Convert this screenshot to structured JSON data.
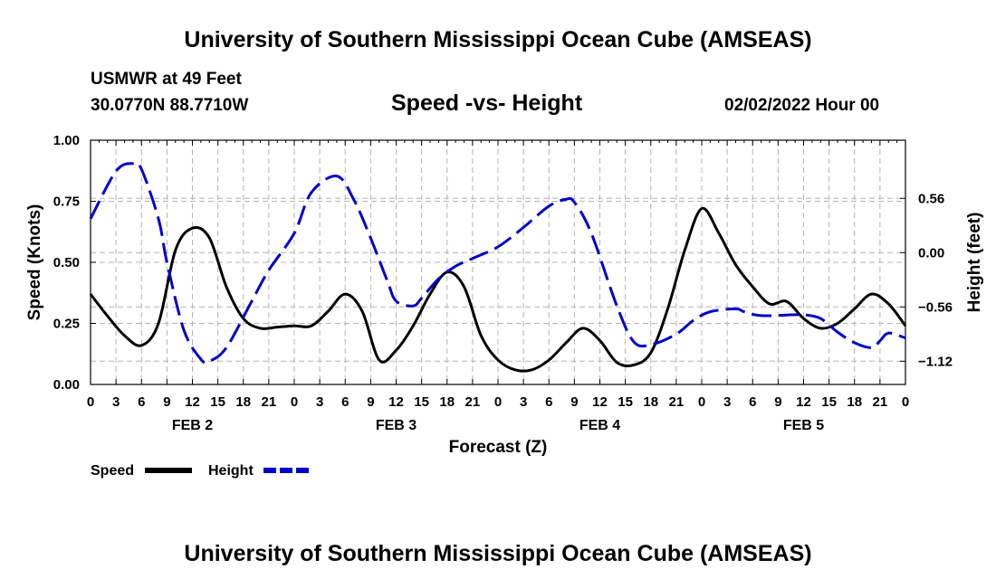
{
  "header": {
    "title": "University of Southern Mississippi Ocean Cube (AMSEAS)",
    "station": "USMWR at 49 Feet",
    "coords": "30.0770N  88.7710W",
    "chart_title": "Speed -vs- Height",
    "datetime": "02/02/2022 Hour 00"
  },
  "footer": {
    "title": "University of Southern Mississippi Ocean Cube (AMSEAS)"
  },
  "legend": {
    "speed_label": "Speed",
    "height_label": "Height"
  },
  "colors": {
    "speed": "#000000",
    "height": "#0000cc",
    "grid": "#b4b4b4"
  },
  "chart_data": {
    "type": "line",
    "title": "Speed -vs- Height",
    "xlabel": "Forecast (Z)",
    "ylabel": "Speed (Knots)",
    "y2label": "Height (feet)",
    "xlim": [
      0,
      96
    ],
    "ylim": [
      0,
      1.0
    ],
    "y2lim": [
      -1.36,
      1.16
    ],
    "x_tick_labels": [
      "0",
      "3",
      "6",
      "9",
      "12",
      "15",
      "18",
      "21",
      "0",
      "3",
      "6",
      "9",
      "12",
      "15",
      "18",
      "21",
      "0",
      "3",
      "6",
      "9",
      "12",
      "15",
      "18",
      "21",
      "0",
      "3",
      "6",
      "9",
      "12",
      "15",
      "18",
      "21",
      "0"
    ],
    "day_labels": [
      {
        "label": "FEB 2",
        "x": 12
      },
      {
        "label": "FEB 3",
        "x": 36
      },
      {
        "label": "FEB 4",
        "x": 60
      },
      {
        "label": "FEB 5",
        "x": 84
      }
    ],
    "y_ticks": [
      "0.00",
      "0.25",
      "0.50",
      "0.75",
      "1.00"
    ],
    "y2_ticks": [
      "−1.12",
      "−0.56",
      "0.00",
      "0.56"
    ],
    "y_tick_values": [
      0,
      0.25,
      0.5,
      0.75,
      1.0
    ],
    "y2_tick_values": [
      -1.12,
      -0.56,
      0.0,
      0.56
    ],
    "grid": true,
    "series": [
      {
        "name": "Speed",
        "axis": "left",
        "style": "solid",
        "x": [
          0,
          2,
          4,
          6,
          8,
          10,
          12,
          14,
          16,
          18,
          20,
          22,
          24,
          26,
          28,
          30,
          32,
          34,
          36,
          38,
          40,
          42,
          44,
          46,
          48,
          50,
          52,
          54,
          56,
          58,
          60,
          62,
          64,
          66,
          68,
          70,
          72,
          74,
          76,
          78,
          80,
          82,
          84,
          86,
          88,
          90,
          92,
          94,
          96
        ],
        "values": [
          0.37,
          0.28,
          0.2,
          0.16,
          0.25,
          0.55,
          0.64,
          0.6,
          0.4,
          0.27,
          0.23,
          0.235,
          0.24,
          0.24,
          0.3,
          0.37,
          0.3,
          0.1,
          0.14,
          0.24,
          0.37,
          0.46,
          0.4,
          0.2,
          0.1,
          0.06,
          0.06,
          0.1,
          0.17,
          0.23,
          0.18,
          0.09,
          0.08,
          0.13,
          0.31,
          0.55,
          0.72,
          0.62,
          0.49,
          0.4,
          0.33,
          0.34,
          0.27,
          0.23,
          0.25,
          0.31,
          0.37,
          0.33,
          0.24
        ]
      },
      {
        "name": "Height",
        "axis": "right",
        "style": "dashed",
        "x": [
          0,
          3,
          5,
          6,
          8,
          9,
          11,
          13,
          14,
          16,
          19,
          21,
          24,
          26,
          29,
          31,
          33,
          35,
          36,
          38,
          39,
          41,
          43,
          45,
          48,
          51,
          54,
          56,
          57,
          59,
          62,
          64,
          66,
          69,
          71,
          73,
          76,
          77,
          79,
          83,
          84,
          86,
          88,
          90,
          92,
          93,
          94,
          96
        ],
        "values": [
          0.35,
          0.84,
          0.92,
          0.86,
          0.35,
          -0.1,
          -0.8,
          -1.1,
          -1.12,
          -0.98,
          -0.5,
          -0.18,
          0.2,
          0.62,
          0.79,
          0.55,
          0.15,
          -0.3,
          -0.5,
          -0.55,
          -0.47,
          -0.27,
          -0.14,
          -0.06,
          0.06,
          0.26,
          0.48,
          0.55,
          0.52,
          0.2,
          -0.55,
          -0.92,
          -0.95,
          -0.84,
          -0.7,
          -0.61,
          -0.58,
          -0.61,
          -0.65,
          -0.64,
          -0.64,
          -0.68,
          -0.82,
          -0.93,
          -0.98,
          -0.91,
          -0.83,
          -0.88
        ]
      }
    ]
  }
}
